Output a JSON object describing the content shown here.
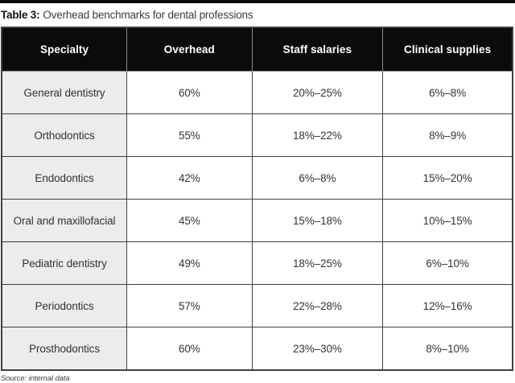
{
  "caption": {
    "label": "Table 3:",
    "text": "Overhead benchmarks for dental professions"
  },
  "chart_data": {
    "type": "table",
    "title": "Table 3: Overhead benchmarks for dental professions",
    "columns": [
      "Specialty",
      "Overhead",
      "Staff salaries",
      "Clinical supplies"
    ],
    "rows": [
      [
        "General dentistry",
        "60%",
        "20%–25%",
        "6%–8%"
      ],
      [
        "Orthodontics",
        "55%",
        "18%–22%",
        "8%–9%"
      ],
      [
        "Endodontics",
        "42%",
        "6%–8%",
        "15%–20%"
      ],
      [
        "Oral and maxillofacial",
        "45%",
        "15%–18%",
        "10%–15%"
      ],
      [
        "Pediatric dentistry",
        "49%",
        "18%–25%",
        "6%–10%"
      ],
      [
        "Periodontics",
        "57%",
        "22%–28%",
        "12%–16%"
      ],
      [
        "Prosthodontics",
        "60%",
        "23%–30%",
        "8%–10%"
      ]
    ]
  },
  "source": "Source: internal data",
  "colors": {
    "top_rule": "#0a0a0a",
    "header_bg": "#0b0b0b",
    "header_text": "#ffffff",
    "row_label_bg": "#ececec",
    "border": "#3f3f3f"
  }
}
